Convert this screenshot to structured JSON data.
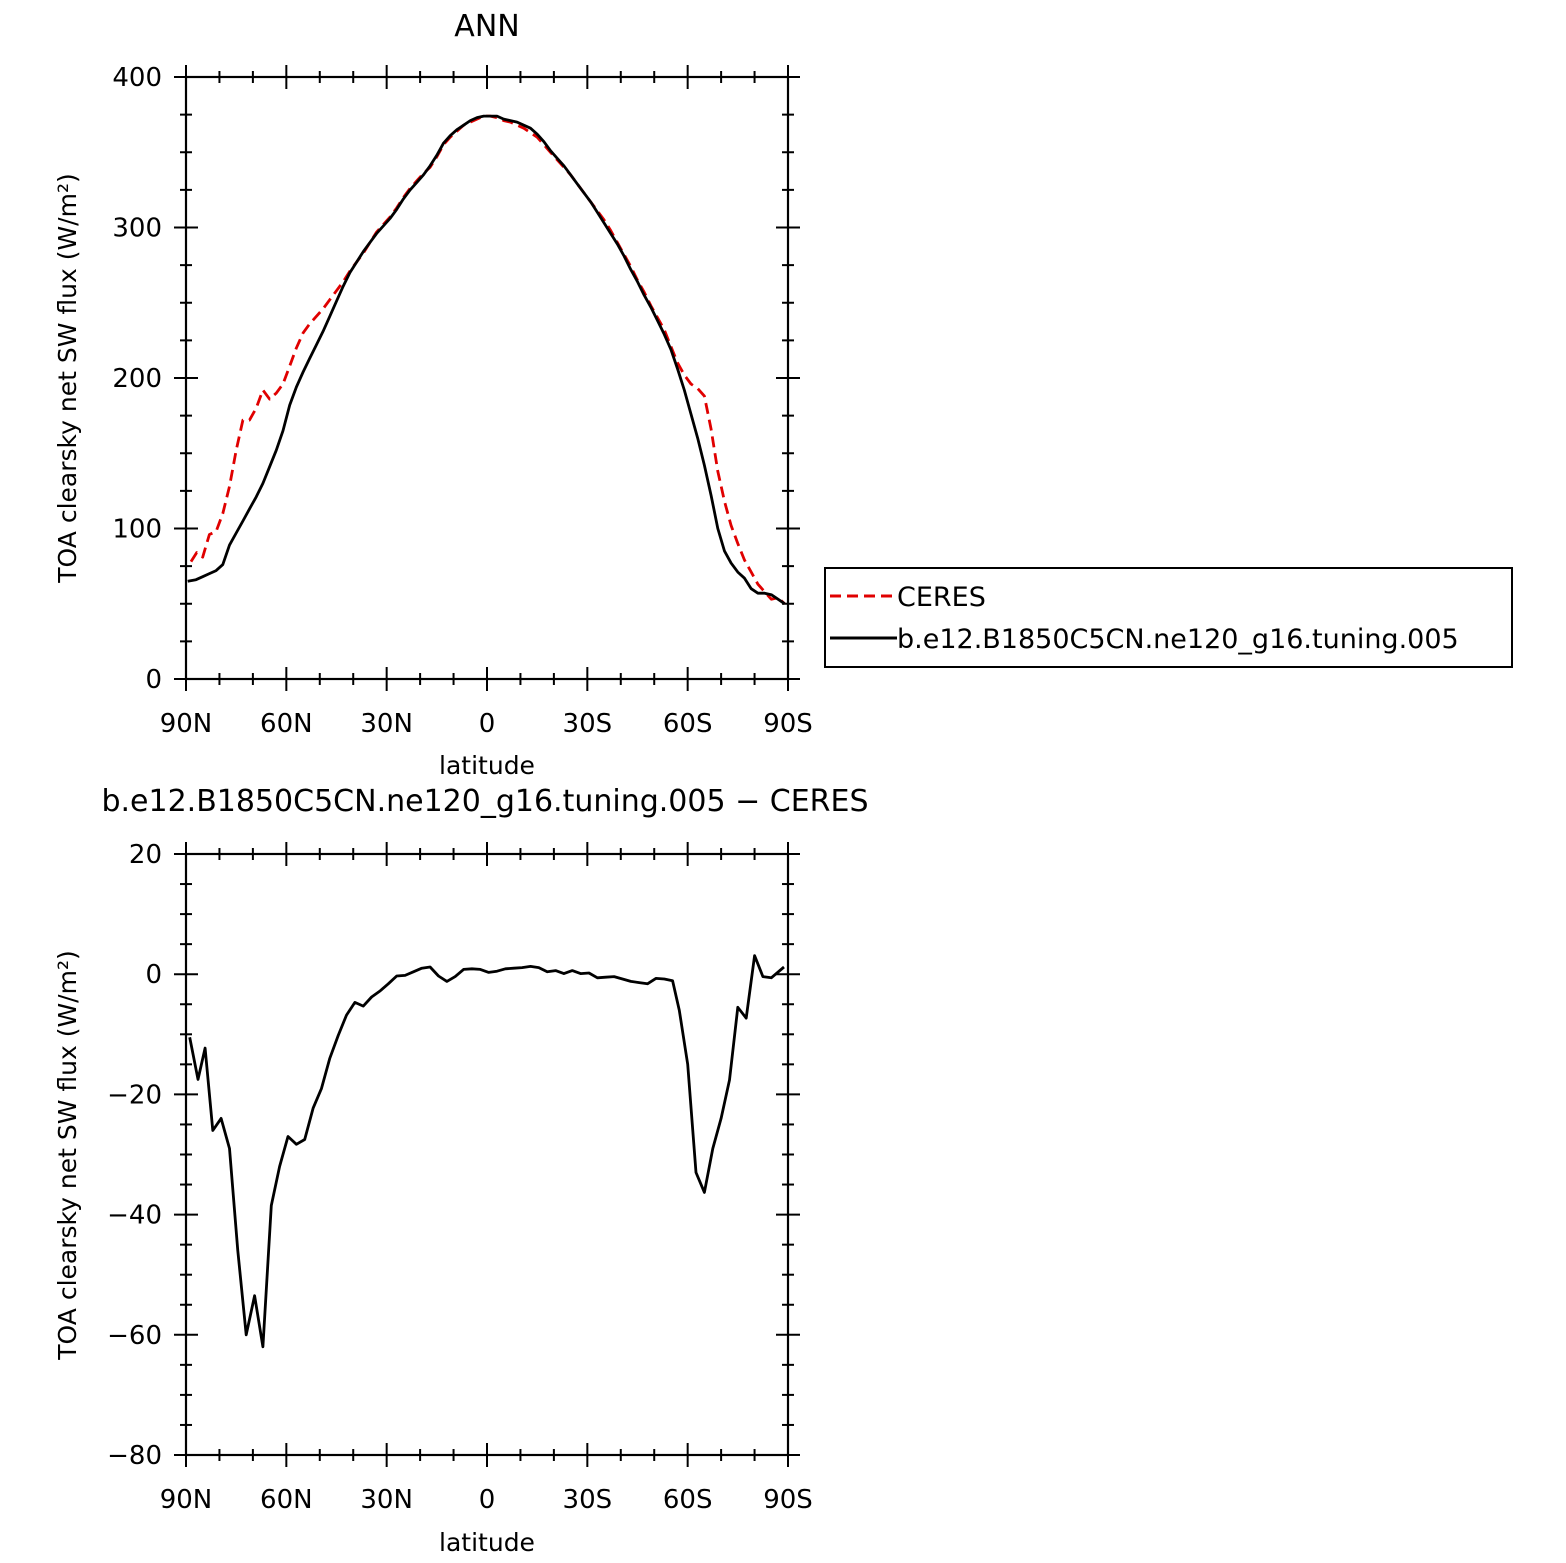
{
  "colors": {
    "ceres": "#e00000",
    "model": "#000000"
  },
  "chart_data": [
    {
      "type": "line",
      "title": "ANN",
      "xlabel": "latitude",
      "ylabel": "TOA clearsky net SW flux (W/m²)",
      "xlim": [
        -90,
        90
      ],
      "ylim": [
        0,
        400
      ],
      "x_tick_values": [
        -90,
        -60,
        -30,
        0,
        30,
        60,
        90
      ],
      "x_tick_labels": [
        "90N",
        "60N",
        "30N",
        "0",
        "30S",
        "60S",
        "90S"
      ],
      "y_tick_values": [
        0,
        100,
        200,
        300,
        400
      ],
      "y_tick_labels": [
        "0",
        "100",
        "200",
        "300",
        "400"
      ],
      "legend": {
        "placement": "right",
        "entries": [
          "CERES",
          "b.e12.B1850C5CN.ne120_g16.tuning.005"
        ]
      },
      "series": [
        {
          "name": "CERES",
          "style": "dashed",
          "color": "#e00000",
          "points": [
            [
              -88.5,
              78
            ],
            [
              -86.8,
              84
            ],
            [
              -85,
              81
            ],
            [
              -83,
              96
            ],
            [
              -81,
              98
            ],
            [
              -79,
              110
            ],
            [
              -77,
              128
            ],
            [
              -75,
              152
            ],
            [
              -73,
              172
            ],
            [
              -71,
              172
            ],
            [
              -69,
              180
            ],
            [
              -67,
              192
            ],
            [
              -65,
              186
            ],
            [
              -63,
              190
            ],
            [
              -61,
              196
            ],
            [
              -59,
              208
            ],
            [
              -57,
              220
            ],
            [
              -55,
              230
            ],
            [
              -53,
              236
            ],
            [
              -51,
              241
            ],
            [
              -49,
              246
            ],
            [
              -47,
              252
            ],
            [
              -45,
              258
            ],
            [
              -43,
              264
            ],
            [
              -41,
              271
            ],
            [
              -39,
              277
            ],
            [
              -37,
              283
            ],
            [
              -35,
              290
            ],
            [
              -33,
              297
            ],
            [
              -31,
              302
            ],
            [
              -29,
              307
            ],
            [
              -27,
              313
            ],
            [
              -25,
              320
            ],
            [
              -23,
              326
            ],
            [
              -21,
              331
            ],
            [
              -19,
              336
            ],
            [
              -17,
              340
            ],
            [
              -15,
              347
            ],
            [
              -13,
              355
            ],
            [
              -11,
              360
            ],
            [
              -9,
              364
            ],
            [
              -7,
              368
            ],
            [
              -5,
              370
            ],
            [
              -3,
              372
            ],
            [
              -1,
              374
            ],
            [
              1,
              374
            ],
            [
              3,
              373
            ],
            [
              5,
              371
            ],
            [
              7,
              370
            ],
            [
              9,
              368
            ],
            [
              11,
              366
            ],
            [
              13,
              363
            ],
            [
              15,
              360
            ],
            [
              17,
              355
            ],
            [
              19,
              350
            ],
            [
              21,
              345
            ],
            [
              23,
              340
            ],
            [
              25,
              335
            ],
            [
              27,
              329
            ],
            [
              29,
              323
            ],
            [
              31,
              317
            ],
            [
              33,
              311
            ],
            [
              35,
              305
            ],
            [
              37,
              298
            ],
            [
              39,
              290
            ],
            [
              41,
              282
            ],
            [
              43,
              274
            ],
            [
              45,
              265
            ],
            [
              47,
              257
            ],
            [
              49,
              248
            ],
            [
              51,
              240
            ],
            [
              53,
              232
            ],
            [
              55,
              221
            ],
            [
              57,
              210
            ],
            [
              59,
              202
            ],
            [
              61,
              196
            ],
            [
              63,
              193
            ],
            [
              65,
              188
            ],
            [
              67,
              166
            ],
            [
              69,
              138
            ],
            [
              71,
              118
            ],
            [
              73,
              102
            ],
            [
              75,
              90
            ],
            [
              77,
              79
            ],
            [
              79,
              71
            ],
            [
              81,
              63
            ],
            [
              83,
              58
            ],
            [
              85,
              53
            ],
            [
              87,
              54
            ],
            [
              89,
              50
            ]
          ]
        },
        {
          "name": "b.e12.B1850C5CN.ne120_g16.tuning.005",
          "style": "solid",
          "color": "#000000",
          "points": [
            [
              -89.5,
              65
            ],
            [
              -87,
              66
            ],
            [
              -85,
              68
            ],
            [
              -83,
              70
            ],
            [
              -81,
              72
            ],
            [
              -79,
              76
            ],
            [
              -77,
              89
            ],
            [
              -75,
              97
            ],
            [
              -73,
              105
            ],
            [
              -71,
              113
            ],
            [
              -69,
              121
            ],
            [
              -67,
              130
            ],
            [
              -65,
              141
            ],
            [
              -63,
              152
            ],
            [
              -61,
              165
            ],
            [
              -59,
              182
            ],
            [
              -57,
              194
            ],
            [
              -55,
              204
            ],
            [
              -53,
              213
            ],
            [
              -51,
              222
            ],
            [
              -49,
              231
            ],
            [
              -47,
              241
            ],
            [
              -45,
              251
            ],
            [
              -43,
              261
            ],
            [
              -41,
              270
            ],
            [
              -39,
              277
            ],
            [
              -37,
              284
            ],
            [
              -35,
              290
            ],
            [
              -33,
              296
            ],
            [
              -31,
              301
            ],
            [
              -29,
              306
            ],
            [
              -27,
              312
            ],
            [
              -25,
              319
            ],
            [
              -23,
              325
            ],
            [
              -21,
              330
            ],
            [
              -19,
              335
            ],
            [
              -17,
              341
            ],
            [
              -15,
              348
            ],
            [
              -13,
              356
            ],
            [
              -11,
              361
            ],
            [
              -9,
              365
            ],
            [
              -7,
              368
            ],
            [
              -5,
              371
            ],
            [
              -3,
              373
            ],
            [
              -1,
              374
            ],
            [
              1,
              374
            ],
            [
              3,
              374
            ],
            [
              5,
              372
            ],
            [
              7,
              371
            ],
            [
              9,
              370
            ],
            [
              11,
              368
            ],
            [
              13,
              366
            ],
            [
              15,
              362
            ],
            [
              17,
              357
            ],
            [
              19,
              351
            ],
            [
              21,
              346
            ],
            [
              23,
              341
            ],
            [
              25,
              335
            ],
            [
              27,
              329
            ],
            [
              29,
              323
            ],
            [
              31,
              317
            ],
            [
              33,
              310
            ],
            [
              35,
              303
            ],
            [
              37,
              296
            ],
            [
              39,
              289
            ],
            [
              41,
              281
            ],
            [
              43,
              272
            ],
            [
              45,
              264
            ],
            [
              47,
              255
            ],
            [
              49,
              247
            ],
            [
              51,
              238
            ],
            [
              53,
              229
            ],
            [
              55,
              219
            ],
            [
              57,
              206
            ],
            [
              59,
              192
            ],
            [
              61,
              176
            ],
            [
              63,
              160
            ],
            [
              65,
              142
            ],
            [
              67,
              122
            ],
            [
              69,
              100
            ],
            [
              71,
              85
            ],
            [
              73,
              77
            ],
            [
              75,
              71
            ],
            [
              77,
              67
            ],
            [
              79,
              60
            ],
            [
              81,
              57
            ],
            [
              83,
              57
            ],
            [
              85,
              56
            ],
            [
              87,
              53
            ],
            [
              89,
              50
            ]
          ]
        }
      ]
    },
    {
      "type": "line",
      "title": "b.e12.B1850C5CN.ne120_g16.tuning.005 − CERES",
      "xlabel": "latitude",
      "ylabel": "TOA clearsky net SW flux (W/m²)",
      "xlim": [
        -90,
        90
      ],
      "ylim": [
        -80,
        20
      ],
      "x_tick_values": [
        -90,
        -60,
        -30,
        0,
        30,
        60,
        90
      ],
      "x_tick_labels": [
        "90N",
        "60N",
        "30N",
        "0",
        "30S",
        "60S",
        "90S"
      ],
      "y_tick_values": [
        -80,
        -60,
        -40,
        -20,
        0,
        20
      ],
      "y_tick_labels": [
        "−80",
        "−60",
        "−40",
        "−20",
        "0",
        "20"
      ],
      "series": [
        {
          "style": "solid",
          "color": "#000000",
          "points": [
            [
              -88.9,
              -10.5
            ],
            [
              -86.4,
              -17.5
            ],
            [
              -84.3,
              -12.3
            ],
            [
              -82,
              -26
            ],
            [
              -79.5,
              -24
            ],
            [
              -77,
              -29
            ],
            [
              -74.5,
              -46
            ],
            [
              -72,
              -60
            ],
            [
              -69.5,
              -53.5
            ],
            [
              -67,
              -62
            ],
            [
              -64.5,
              -38.5
            ],
            [
              -62,
              -32
            ],
            [
              -59.5,
              -27
            ],
            [
              -57,
              -28.3
            ],
            [
              -54.5,
              -27.5
            ],
            [
              -52,
              -22.3
            ],
            [
              -49.5,
              -19
            ],
            [
              -47,
              -14
            ],
            [
              -44.5,
              -10.2
            ],
            [
              -42,
              -6.8
            ],
            [
              -39.5,
              -4.7
            ],
            [
              -37,
              -5.3
            ],
            [
              -34.5,
              -3.8
            ],
            [
              -32,
              -2.8
            ],
            [
              -29.5,
              -1.6
            ],
            [
              -27,
              -0.3
            ],
            [
              -24.5,
              -0.2
            ],
            [
              -22,
              0.4
            ],
            [
              -19.5,
              1.0
            ],
            [
              -17,
              1.2
            ],
            [
              -14.5,
              -0.3
            ],
            [
              -12,
              -1.2
            ],
            [
              -9.5,
              -0.4
            ],
            [
              -7,
              0.8
            ],
            [
              -4.5,
              0.9
            ],
            [
              -2,
              0.8
            ],
            [
              0.5,
              0.3
            ],
            [
              3,
              0.5
            ],
            [
              5.5,
              0.9
            ],
            [
              8,
              1.0
            ],
            [
              10.5,
              1.1
            ],
            [
              13,
              1.3
            ],
            [
              15.5,
              1.1
            ],
            [
              18,
              0.4
            ],
            [
              20.5,
              0.6
            ],
            [
              23,
              0.1
            ],
            [
              25.5,
              0.6
            ],
            [
              28,
              0.1
            ],
            [
              30.5,
              0.2
            ],
            [
              33,
              -0.6
            ],
            [
              35.5,
              -0.5
            ],
            [
              38,
              -0.4
            ],
            [
              40.5,
              -0.8
            ],
            [
              43,
              -1.2
            ],
            [
              45.5,
              -1.4
            ],
            [
              48,
              -1.6
            ],
            [
              50.5,
              -0.7
            ],
            [
              53,
              -0.8
            ],
            [
              55.5,
              -1.1
            ],
            [
              57.5,
              -6
            ],
            [
              60,
              -15
            ],
            [
              62.5,
              -33
            ],
            [
              65,
              -36.3
            ],
            [
              67.5,
              -29
            ],
            [
              70,
              -24
            ],
            [
              72.5,
              -17.6
            ],
            [
              75,
              -5.5
            ],
            [
              77.5,
              -7.3
            ],
            [
              80,
              3.1
            ],
            [
              82.5,
              -0.4
            ],
            [
              85,
              -0.6
            ],
            [
              88.8,
              1.2
            ]
          ]
        }
      ]
    }
  ]
}
